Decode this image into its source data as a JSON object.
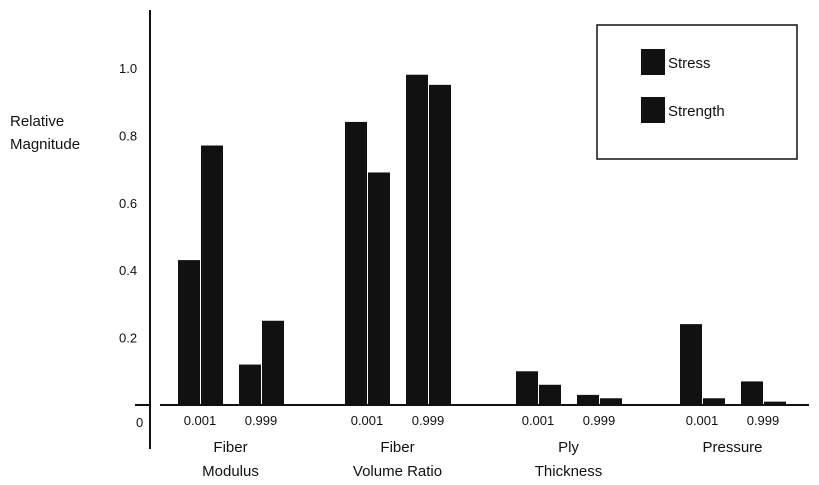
{
  "chart_data": {
    "type": "bar",
    "title": "",
    "ylabel": [
      "Relative",
      "Magnitude"
    ],
    "xlabel": "",
    "ylim": [
      0,
      1.1
    ],
    "y_ticks": [
      {
        "value": 0,
        "label": "0"
      },
      {
        "value": 0.2,
        "label": "0.2"
      },
      {
        "value": 0.4,
        "label": "0.4"
      },
      {
        "value": 0.6,
        "label": "0.6"
      },
      {
        "value": 0.8,
        "label": "0.8"
      },
      {
        "value": 1.0,
        "label": "1.0"
      }
    ],
    "legend": {
      "position": "top-right",
      "entries": [
        {
          "name": "Stress",
          "color": "#111111"
        },
        {
          "name": "Strength",
          "color": "#111111"
        }
      ]
    },
    "groups": [
      {
        "label": [
          "Fiber",
          "Modulus"
        ],
        "subgroups": [
          {
            "label": "0.001",
            "stress": 0.43,
            "strength": 0.77
          },
          {
            "label": "0.999",
            "stress": 0.12,
            "strength": 0.25
          }
        ]
      },
      {
        "label": [
          "Fiber",
          "Volume Ratio"
        ],
        "subgroups": [
          {
            "label": "0.001",
            "stress": 0.84,
            "strength": 0.69
          },
          {
            "label": "0.999",
            "stress": 0.98,
            "strength": 0.95
          }
        ]
      },
      {
        "label": [
          "Ply",
          "Thickness"
        ],
        "subgroups": [
          {
            "label": "0.001",
            "stress": 0.1,
            "strength": 0.06
          },
          {
            "label": "0.999",
            "stress": 0.03,
            "strength": 0.02
          }
        ]
      },
      {
        "label": [
          "Pressure",
          ""
        ],
        "subgroups": [
          {
            "label": "0.001",
            "stress": 0.24,
            "strength": 0.02
          },
          {
            "label": "0.999",
            "stress": 0.07,
            "strength": 0.01
          }
        ]
      }
    ],
    "colors": {
      "bar": "#111111",
      "axis": "#111111",
      "background": "#ffffff"
    }
  }
}
